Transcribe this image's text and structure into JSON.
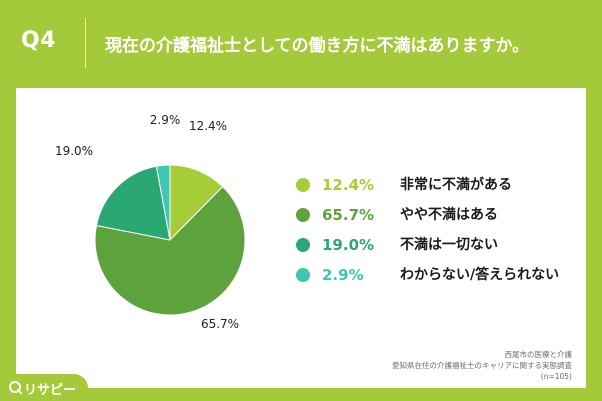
{
  "header": {
    "question_number": "Q4",
    "question_text": "現在の介護福祉士としての働き方に不満はありますか。"
  },
  "chart_data": {
    "type": "pie",
    "categories": [
      "非常に不満がある",
      "やや不満はある",
      "不満は一切ない",
      "わからない/答えられない"
    ],
    "values": [
      12.4,
      65.7,
      19.0,
      2.9
    ],
    "value_labels": [
      "12.4%",
      "65.7%",
      "19.0%",
      "2.9%"
    ],
    "colors": [
      "#a6cc37",
      "#5da23d",
      "#2aa874",
      "#3ec6b0"
    ],
    "start_angle": "12 o'clock, clockwise",
    "legend_position": "right"
  },
  "source": {
    "line1": "西尾市の医療と介護",
    "line2": "愛知県在住の介護福祉士のキャリアに関する実態調査",
    "line3": "(n=105)"
  },
  "logo": {
    "text": "リサピー"
  },
  "colors": {
    "brand_green": "#a4c93a",
    "card_background": "#ffffff"
  }
}
